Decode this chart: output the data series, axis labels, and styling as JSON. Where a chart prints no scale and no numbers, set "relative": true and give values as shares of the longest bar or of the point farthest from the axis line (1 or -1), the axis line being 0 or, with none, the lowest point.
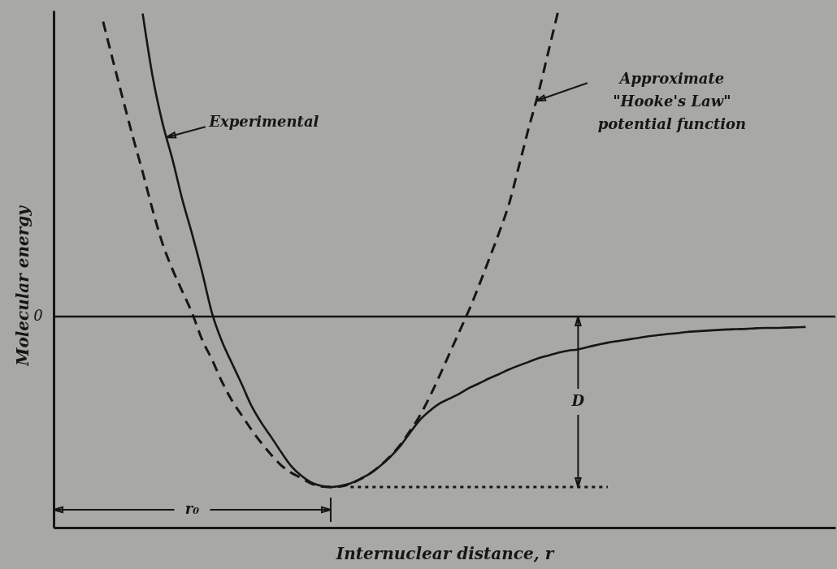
{
  "chart_data": {
    "type": "line",
    "relative": true,
    "xlabel": "Internuclear distance, r",
    "ylabel": "Molecular energy",
    "categories": [
      null,
      null,
      null,
      null,
      null,
      null,
      null,
      null,
      null,
      null,
      null,
      null,
      null,
      null,
      null,
      null,
      null,
      null,
      null,
      null,
      null,
      null,
      null,
      null,
      null,
      null,
      null,
      null,
      null,
      null,
      null,
      null,
      null,
      null,
      null,
      null,
      null,
      null,
      null,
      null,
      null,
      null,
      null,
      null,
      null,
      null,
      null,
      null,
      null,
      null,
      null,
      null,
      null,
      null,
      null,
      null,
      null,
      null,
      null,
      null,
      null,
      null,
      null,
      null,
      null,
      null,
      null,
      null,
      null,
      null,
      null,
      null,
      null,
      null,
      null,
      null,
      null,
      null,
      null,
      null
    ],
    "series": [
      {
        "name": "Approximate \"Hooke's Law\" potential function",
        "color": "#161616",
        "line_style": "dashed",
        "values": [
          null,
          null,
          null,
          null,
          null,
          0.964,
          0.836,
          0.711,
          0.588,
          0.472,
          0.349,
          0.239,
          0.155,
          0.083,
          0.011,
          -0.075,
          -0.14,
          -0.212,
          -0.273,
          -0.322,
          -0.37,
          -0.413,
          -0.452,
          -0.486,
          -0.51,
          -0.527,
          -0.545,
          -0.555,
          -0.557,
          -0.555,
          -0.546,
          -0.531,
          -0.512,
          -0.487,
          -0.457,
          -0.42,
          -0.374,
          -0.324,
          -0.262,
          -0.193,
          -0.121,
          -0.049,
          0.023,
          0.103,
          0.187,
          0.273,
          0.366,
          0.489,
          0.615,
          0.732,
          0.866,
          1,
          null,
          null,
          null,
          null,
          null,
          null,
          null,
          null,
          null,
          null,
          null,
          null,
          null,
          null,
          null,
          null,
          null,
          null,
          null,
          null,
          null,
          null,
          null,
          null,
          null,
          null,
          null,
          null
        ]
      },
      {
        "name": "Experimental",
        "color": "#161616",
        "line_style": "solid",
        "values": [
          null,
          null,
          null,
          null,
          null,
          null,
          null,
          null,
          null,
          0.99,
          0.785,
          0.633,
          0.515,
          0.383,
          0.269,
          0.146,
          0.012,
          -0.08,
          -0.151,
          -0.22,
          -0.292,
          -0.347,
          -0.394,
          -0.443,
          -0.488,
          -0.519,
          -0.541,
          -0.553,
          -0.557,
          -0.553,
          -0.545,
          -0.53,
          -0.512,
          -0.488,
          -0.459,
          -0.424,
          -0.38,
          -0.338,
          -0.308,
          -0.284,
          -0.268,
          -0.252,
          -0.233,
          -0.218,
          -0.202,
          -0.188,
          -0.173,
          -0.16,
          -0.148,
          -0.136,
          -0.127,
          -0.118,
          -0.111,
          -0.107,
          -0.099,
          -0.092,
          -0.085,
          -0.08,
          -0.075,
          -0.07,
          -0.065,
          -0.061,
          -0.057,
          -0.054,
          -0.05,
          -0.048,
          -0.046,
          -0.044,
          -0.042,
          -0.041,
          -0.04,
          -0.038,
          -0.037,
          -0.037,
          -0.036,
          -0.035,
          -0.034,
          null,
          null,
          null
        ]
      },
      {
        "color": "#161616",
        "line_style": "dotted",
        "values": [
          null,
          null,
          null,
          null,
          null,
          null,
          null,
          null,
          null,
          null,
          null,
          null,
          null,
          null,
          null,
          null,
          null,
          null,
          null,
          null,
          null,
          null,
          null,
          null,
          null,
          null,
          null,
          null,
          null,
          null,
          -0.557,
          -0.557,
          -0.557,
          -0.557,
          -0.557,
          -0.557,
          -0.557,
          -0.557,
          -0.557,
          -0.557,
          -0.557,
          -0.557,
          -0.557,
          -0.557,
          -0.557,
          -0.557,
          -0.557,
          -0.557,
          -0.557,
          -0.557,
          -0.557,
          -0.557,
          -0.557,
          -0.557,
          -0.557,
          -0.557,
          -0.557,
          null,
          null,
          null,
          null,
          null,
          null,
          null,
          null,
          null,
          null,
          null,
          null,
          null,
          null,
          null,
          null,
          null,
          null,
          null,
          null,
          null,
          null,
          null
        ]
      }
    ],
    "ref_lines": [
      {
        "axis": "y",
        "value": 0,
        "label": "0"
      }
    ],
    "annotations": [
      "D",
      "r₀"
    ]
  }
}
